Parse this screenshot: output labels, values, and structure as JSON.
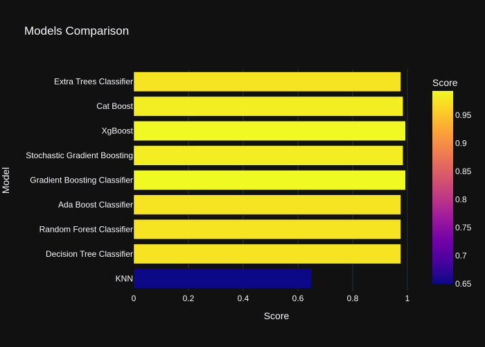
{
  "chart_data": {
    "type": "bar",
    "orientation": "horizontal",
    "title": "Models Comparison",
    "xlabel": "Score",
    "ylabel": "Model",
    "xlim": [
      0,
      1
    ],
    "xticks": [
      0,
      0.2,
      0.4,
      0.6,
      0.8,
      1
    ],
    "grid": true,
    "categories": [
      "KNN",
      "Decision Tree Classifier",
      "Random Forest Classifier",
      "Ada Boost Classifier",
      "Gradient Boosting Classifier",
      "Stochastic Gradient Boosting",
      "XgBoost",
      "Cat Boost",
      "Extra Trees Classifier"
    ],
    "values": [
      0.65,
      0.976,
      0.976,
      0.976,
      0.993,
      0.984,
      0.993,
      0.984,
      0.976
    ],
    "colorbar": {
      "title": "Score",
      "range": [
        0.65,
        0.993
      ],
      "ticks": [
        0.65,
        0.7,
        0.75,
        0.8,
        0.85,
        0.9,
        0.95
      ],
      "tick_labels": [
        "0.65",
        "0.7",
        "0.75",
        "0.8",
        "0.85",
        "0.9",
        "0.95"
      ],
      "colorscale": [
        "#0d0887",
        "#46039f",
        "#7201a8",
        "#9c179e",
        "#bd3786",
        "#d8576b",
        "#ed7953",
        "#fb9f3a",
        "#fdca26",
        "#f0f921"
      ]
    },
    "colors": {
      "background": "#111111",
      "grid": "#283442",
      "text": "#f2f5fa",
      "tick_text": "#f2f5fa"
    }
  }
}
